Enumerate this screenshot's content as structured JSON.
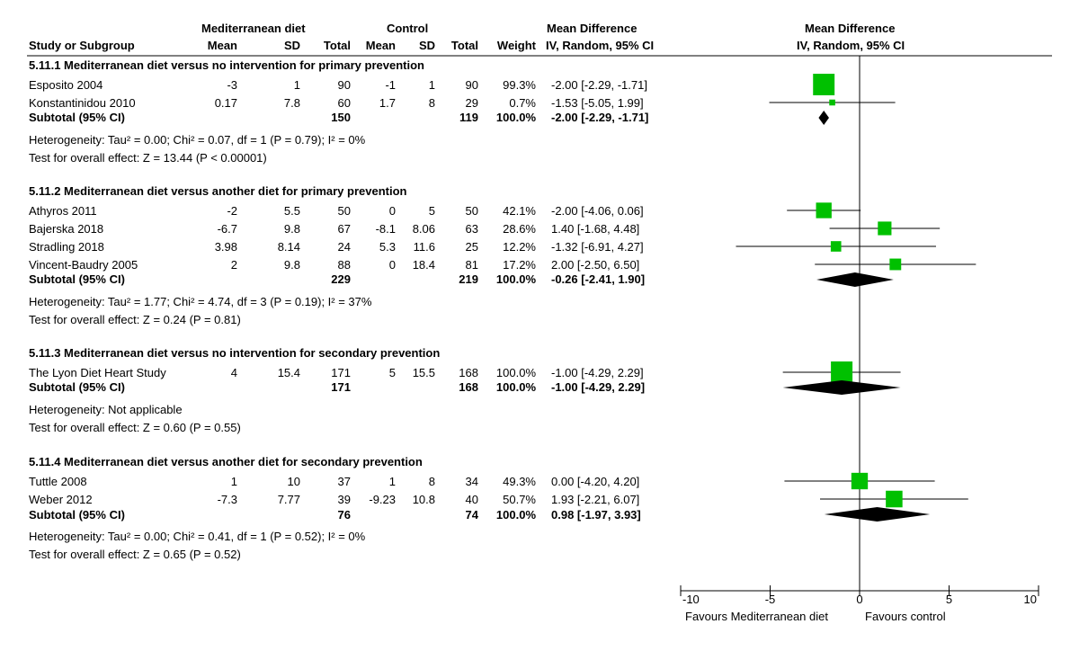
{
  "header": {
    "group1": "Mediterranean diet",
    "group2": "Control",
    "md_title": "Mean Difference",
    "md_method": "IV, Random, 95% CI",
    "plot_title": "Mean Difference",
    "plot_method": "IV, Random, 95% CI",
    "columns": {
      "study": "Study or Subgroup",
      "mean1": "Mean",
      "sd1": "SD",
      "total1": "Total",
      "mean2": "Mean",
      "sd2": "SD",
      "total2": "Total",
      "weight": "Weight"
    }
  },
  "subgroups": [
    {
      "title": "5.11.1 Mediterranean diet versus no intervention for primary prevention",
      "studies": [
        {
          "name": "Esposito 2004",
          "mean1": "-3",
          "sd1": "1",
          "total1": "90",
          "mean2": "-1",
          "sd2": "1",
          "total2": "90",
          "weight": "99.3%",
          "ci": "-2.00 [-2.29, -1.71]"
        },
        {
          "name": "Konstantinidou 2010",
          "mean1": "0.17",
          "sd1": "7.8",
          "total1": "60",
          "mean2": "1.7",
          "sd2": "8",
          "total2": "29",
          "weight": "0.7%",
          "ci": "-1.53 [-5.05, 1.99]"
        }
      ],
      "subtotal": {
        "label": "Subtotal (95% CI)",
        "total1": "150",
        "total2": "119",
        "weight": "100.0%",
        "ci": "-2.00 [-2.29, -1.71]"
      },
      "heterogeneity": "Heterogeneity: Tau² = 0.00; Chi² = 0.07, df = 1 (P = 0.79); I² = 0%",
      "overall": "Test for overall effect: Z = 13.44 (P < 0.00001)"
    },
    {
      "title": "5.11.2 Mediterranean diet versus another diet for primary prevention",
      "studies": [
        {
          "name": "Athyros 2011",
          "mean1": "-2",
          "sd1": "5.5",
          "total1": "50",
          "mean2": "0",
          "sd2": "5",
          "total2": "50",
          "weight": "42.1%",
          "ci": "-2.00 [-4.06, 0.06]"
        },
        {
          "name": "Bajerska 2018",
          "mean1": "-6.7",
          "sd1": "9.8",
          "total1": "67",
          "mean2": "-8.1",
          "sd2": "8.06",
          "total2": "63",
          "weight": "28.6%",
          "ci": "1.40 [-1.68, 4.48]"
        },
        {
          "name": "Stradling 2018",
          "mean1": "3.98",
          "sd1": "8.14",
          "total1": "24",
          "mean2": "5.3",
          "sd2": "11.6",
          "total2": "25",
          "weight": "12.2%",
          "ci": "-1.32 [-6.91, 4.27]"
        },
        {
          "name": "Vincent-Baudry 2005",
          "mean1": "2",
          "sd1": "9.8",
          "total1": "88",
          "mean2": "0",
          "sd2": "18.4",
          "total2": "81",
          "weight": "17.2%",
          "ci": "2.00 [-2.50, 6.50]"
        }
      ],
      "subtotal": {
        "label": "Subtotal (95% CI)",
        "total1": "229",
        "total2": "219",
        "weight": "100.0%",
        "ci": "-0.26 [-2.41, 1.90]"
      },
      "heterogeneity": "Heterogeneity: Tau² = 1.77; Chi² = 4.74, df = 3 (P = 0.19); I² = 37%",
      "overall": "Test for overall effect: Z = 0.24 (P = 0.81)"
    },
    {
      "title": "5.11.3 Mediterranean diet versus no intervention for secondary prevention",
      "studies": [
        {
          "name": "The Lyon Diet Heart Study",
          "mean1": "4",
          "sd1": "15.4",
          "total1": "171",
          "mean2": "5",
          "sd2": "15.5",
          "total2": "168",
          "weight": "100.0%",
          "ci": "-1.00 [-4.29, 2.29]"
        }
      ],
      "subtotal": {
        "label": "Subtotal (95% CI)",
        "total1": "171",
        "total2": "168",
        "weight": "100.0%",
        "ci": "-1.00 [-4.29, 2.29]"
      },
      "heterogeneity": "Heterogeneity: Not applicable",
      "overall": "Test for overall effect: Z = 0.60 (P = 0.55)"
    },
    {
      "title": "5.11.4 Mediterranean diet versus another diet for secondary prevention",
      "studies": [
        {
          "name": "Tuttle 2008",
          "mean1": "1",
          "sd1": "10",
          "total1": "37",
          "mean2": "1",
          "sd2": "8",
          "total2": "34",
          "weight": "49.3%",
          "ci": "0.00 [-4.20, 4.20]"
        },
        {
          "name": "Weber 2012",
          "mean1": "-7.3",
          "sd1": "7.77",
          "total1": "39",
          "mean2": "-9.23",
          "sd2": "10.8",
          "total2": "40",
          "weight": "50.7%",
          "ci": "1.93 [-2.21, 6.07]"
        }
      ],
      "subtotal": {
        "label": "Subtotal (95% CI)",
        "total1": "76",
        "total2": "74",
        "weight": "100.0%",
        "ci": "0.98 [-1.97, 3.93]"
      },
      "heterogeneity": "Heterogeneity: Tau² = 0.00; Chi² = 0.41, df = 1 (P = 0.52); I² = 0%",
      "overall": "Test for overall effect: Z = 0.65 (P = 0.52)"
    }
  ],
  "axis": {
    "favours_left": "Favours Mediterranean diet",
    "favours_right": "Favours control"
  },
  "colors": {
    "marker": "#00c000",
    "diamond": "#000000",
    "line": "#000000"
  },
  "chart_data": {
    "type": "forest",
    "title": "Mean Difference",
    "subtitle": "IV, Random, 95% CI",
    "xlim": [
      -10,
      10
    ],
    "xticks": [
      -10,
      -5,
      0,
      5,
      10
    ],
    "xticklabels": [
      "-10",
      "-5",
      "0",
      "5",
      "10"
    ],
    "xlabel_left": "Favours Mediterranean diet",
    "xlabel_right": "Favours control",
    "rows": [
      {
        "kind": "study",
        "name": "Esposito 2004",
        "est": -2.0,
        "lo": -2.29,
        "hi": -1.71,
        "weight": 99.3
      },
      {
        "kind": "study",
        "name": "Konstantinidou 2010",
        "est": -1.53,
        "lo": -5.05,
        "hi": 1.99,
        "weight": 0.7
      },
      {
        "kind": "subtotal",
        "name": "Subtotal 5.11.1",
        "est": -2.0,
        "lo": -2.29,
        "hi": -1.71
      },
      {
        "kind": "study",
        "name": "Athyros 2011",
        "est": -2.0,
        "lo": -4.06,
        "hi": 0.06,
        "weight": 42.1
      },
      {
        "kind": "study",
        "name": "Bajerska 2018",
        "est": 1.4,
        "lo": -1.68,
        "hi": 4.48,
        "weight": 28.6
      },
      {
        "kind": "study",
        "name": "Stradling 2018",
        "est": -1.32,
        "lo": -6.91,
        "hi": 4.27,
        "weight": 12.2
      },
      {
        "kind": "study",
        "name": "Vincent-Baudry 2005",
        "est": 2.0,
        "lo": -2.5,
        "hi": 6.5,
        "weight": 17.2
      },
      {
        "kind": "subtotal",
        "name": "Subtotal 5.11.2",
        "est": -0.26,
        "lo": -2.41,
        "hi": 1.9
      },
      {
        "kind": "study",
        "name": "The Lyon Diet Heart Study",
        "est": -1.0,
        "lo": -4.29,
        "hi": 2.29,
        "weight": 100.0
      },
      {
        "kind": "subtotal",
        "name": "Subtotal 5.11.3",
        "est": -1.0,
        "lo": -4.29,
        "hi": 2.29
      },
      {
        "kind": "study",
        "name": "Tuttle 2008",
        "est": 0.0,
        "lo": -4.2,
        "hi": 4.2,
        "weight": 49.3
      },
      {
        "kind": "study",
        "name": "Weber 2012",
        "est": 1.93,
        "lo": -2.21,
        "hi": 6.07,
        "weight": 50.7
      },
      {
        "kind": "subtotal",
        "name": "Subtotal 5.11.4",
        "est": 0.98,
        "lo": -1.97,
        "hi": 3.93
      }
    ]
  }
}
